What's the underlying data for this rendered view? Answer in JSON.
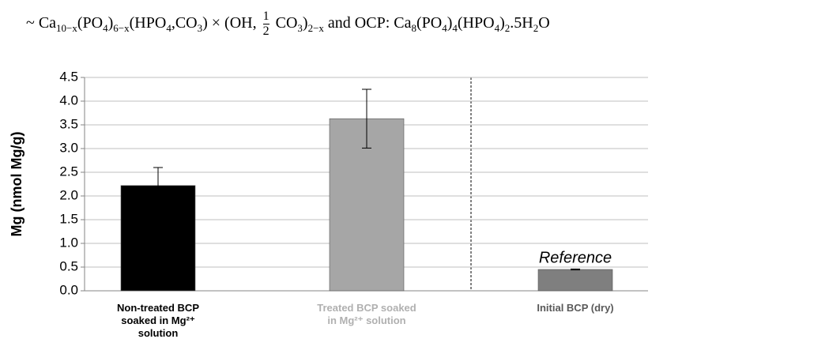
{
  "formula": [
    "~ Ca",
    {
      "sub": "10−x"
    },
    "(PO",
    {
      "sub": "4"
    },
    ")",
    {
      "sub": "6−x"
    },
    "(HPO",
    {
      "sub": "4"
    },
    ",CO",
    {
      "sub": "3"
    },
    ") × (OH, ",
    {
      "frac": [
        "1",
        "2"
      ]
    },
    " CO",
    {
      "sub": "3"
    },
    ")",
    {
      "sub": "2−x"
    },
    " and OCP: Ca",
    {
      "sub": "8"
    },
    "(PO",
    {
      "sub": "4"
    },
    ")",
    {
      "sub": "4"
    },
    "(HPO",
    {
      "sub": "4"
    },
    ")",
    {
      "sub": "2"
    },
    ".5H",
    {
      "sub": "2"
    },
    "O"
  ],
  "chart_data": {
    "type": "bar",
    "ylabel": "Mg (nmol Mg/g)",
    "categories": [
      "Non-treated BCP soaked in Mg²⁺ solution",
      "Treated BCP soaked in Mg²⁺ solution",
      "Initial BCP (dry)"
    ],
    "category_colors": [
      "#000000",
      "#b0b0b0",
      "#595959"
    ],
    "values": [
      2.22,
      3.63,
      0.45
    ],
    "errors": [
      0.38,
      0.62,
      0.01
    ],
    "colors": [
      "#000000",
      "#a6a6a6",
      "#7f7f7f"
    ],
    "annotations": [
      {
        "text": "Reference",
        "category": 2
      }
    ],
    "ylim": [
      0,
      4.5
    ],
    "yticks": [
      {
        "value": 0,
        "label": "0.0"
      },
      {
        "value": 0.5,
        "label": "0.5"
      },
      {
        "value": 1,
        "label": "1.0"
      },
      {
        "value": 1.5,
        "label": "1.5"
      },
      {
        "value": 2,
        "label": "2.0"
      },
      {
        "value": 2.5,
        "label": "2.5"
      },
      {
        "value": 3,
        "label": "3.0"
      },
      {
        "value": 3.5,
        "label": "3.5"
      },
      {
        "value": 4,
        "label": "4.0"
      },
      {
        "value": 4.5,
        "label": "4.5"
      }
    ],
    "grid": true
  }
}
